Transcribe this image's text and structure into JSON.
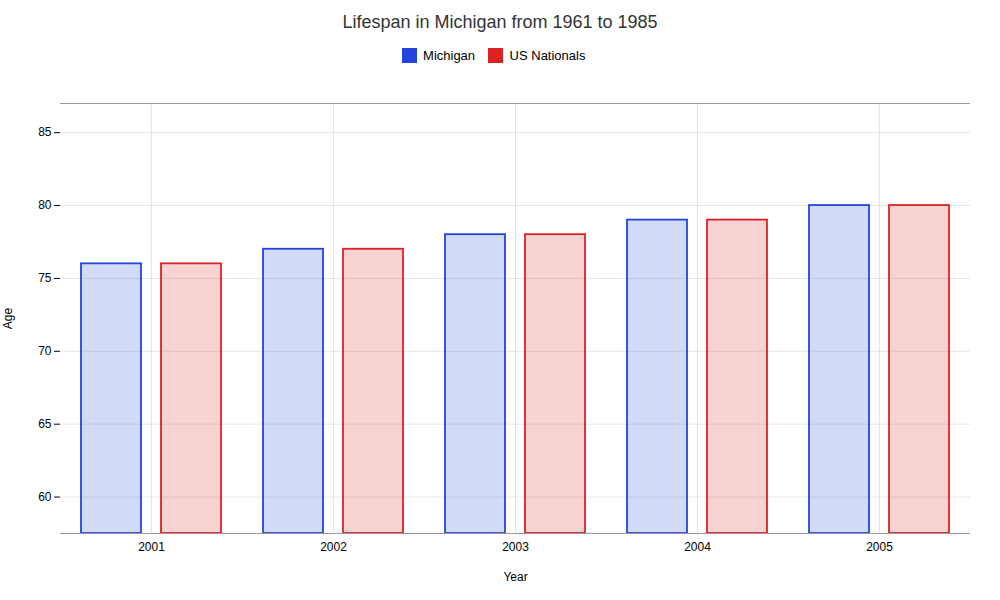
{
  "chart_data": {
    "type": "bar",
    "title": "Lifespan in Michigan from 1961 to 1985",
    "xlabel": "Year",
    "ylabel": "Age",
    "categories": [
      "2001",
      "2002",
      "2003",
      "2004",
      "2005"
    ],
    "series": [
      {
        "name": "Michigan",
        "color": "#2244dd",
        "values": [
          76,
          77,
          78,
          79,
          80
        ]
      },
      {
        "name": "US Nationals",
        "color": "#dd2222",
        "values": [
          76,
          77,
          78,
          79,
          80
        ]
      }
    ],
    "ylim": [
      57.5,
      87
    ],
    "yticks": [
      60,
      65,
      70,
      75,
      80,
      85
    ],
    "grid": true,
    "legend": "top"
  }
}
